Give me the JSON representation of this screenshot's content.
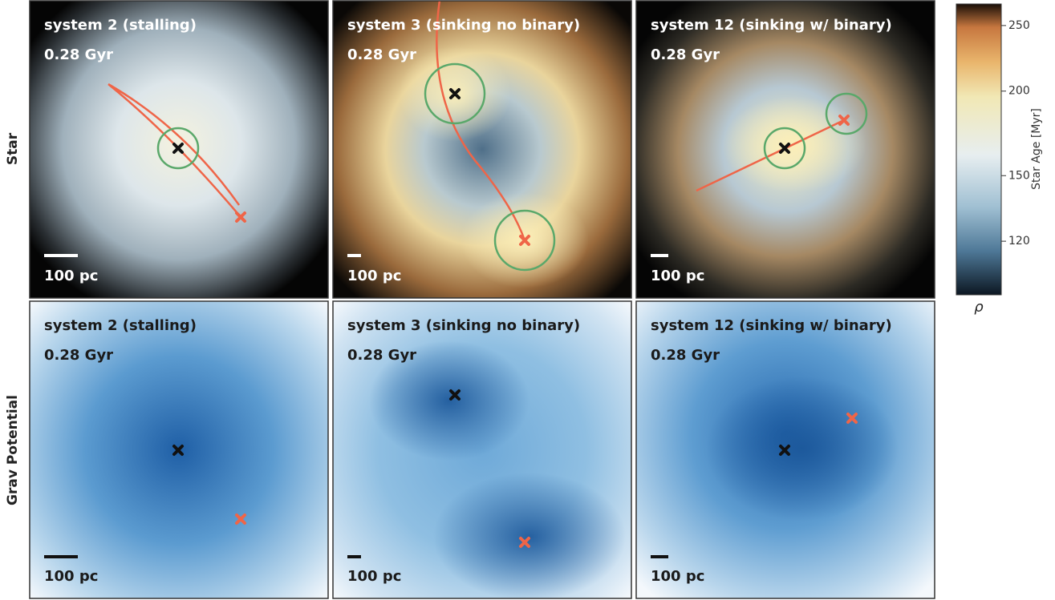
{
  "row_labels": [
    "Star",
    "Grav Potential"
  ],
  "panels": [
    {
      "title": "system 2 (stalling)",
      "time": "0.28 Gyr",
      "scale": "100 pc"
    },
    {
      "title": "system 3 (sinking no binary)",
      "time": "0.28 Gyr",
      "scale": "100 pc"
    },
    {
      "title": "system 12 (sinking w/ binary)",
      "time": "0.28 Gyr",
      "scale": "100 pc"
    },
    {
      "title": "system 2 (stalling)",
      "time": "0.28 Gyr",
      "scale": "100 pc"
    },
    {
      "title": "system 3 (sinking no binary)",
      "time": "0.28 Gyr",
      "scale": "100 pc"
    },
    {
      "title": "system 12 (sinking w/ binary)",
      "time": "0.28 Gyr",
      "scale": "100 pc"
    }
  ],
  "colorbar": {
    "label": "Star Age [Myr]",
    "sublabel": "ρ",
    "ylim": [
      100,
      269
    ],
    "yticks": [
      120,
      150,
      200,
      250
    ],
    "log_scale": true
  }
}
